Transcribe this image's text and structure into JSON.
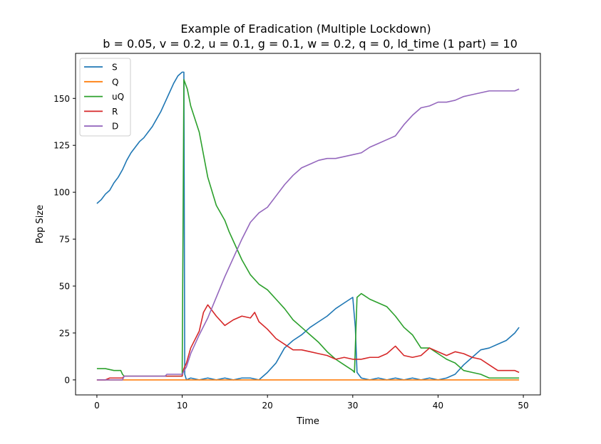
{
  "chart_data": {
    "type": "line",
    "title_line1": "Example of Eradication (Multiple Lockdown)",
    "title_line2": "b = 0.05, v = 0.2, u = 0.1, g = 0.1, w = 0.2, q = 0, ld_time (1 part) = 10",
    "xlabel": "Time",
    "ylabel": "Pop Size",
    "xlim": [
      -2.5,
      52
    ],
    "ylim": [
      -8,
      174
    ],
    "xticks": [
      0,
      10,
      20,
      30,
      40,
      50
    ],
    "yticks": [
      0,
      25,
      50,
      75,
      100,
      125,
      150
    ],
    "legend_position": "upper-left",
    "series": [
      {
        "name": "S",
        "color": "#1f77b4",
        "points": [
          [
            0,
            94
          ],
          [
            0.5,
            96
          ],
          [
            1,
            99
          ],
          [
            1.5,
            101
          ],
          [
            2,
            105
          ],
          [
            2.5,
            108
          ],
          [
            3,
            112
          ],
          [
            3.5,
            117
          ],
          [
            4,
            121
          ],
          [
            4.5,
            124
          ],
          [
            5,
            127
          ],
          [
            5.5,
            129
          ],
          [
            6,
            132
          ],
          [
            6.5,
            135
          ],
          [
            7,
            139
          ],
          [
            7.5,
            143
          ],
          [
            8,
            148
          ],
          [
            8.5,
            153
          ],
          [
            9,
            158
          ],
          [
            9.5,
            162
          ],
          [
            10,
            164
          ],
          [
            10.2,
            164
          ],
          [
            10.3,
            3
          ],
          [
            10.5,
            0
          ],
          [
            11,
            1
          ],
          [
            12,
            0
          ],
          [
            13,
            1
          ],
          [
            14,
            0
          ],
          [
            15,
            1
          ],
          [
            16,
            0
          ],
          [
            17,
            1
          ],
          [
            18,
            1
          ],
          [
            19,
            0
          ],
          [
            19.5,
            2
          ],
          [
            20,
            4
          ],
          [
            21,
            9
          ],
          [
            22,
            17
          ],
          [
            23,
            21
          ],
          [
            24,
            24
          ],
          [
            25,
            28
          ],
          [
            26,
            31
          ],
          [
            27,
            34
          ],
          [
            28,
            38
          ],
          [
            29,
            41
          ],
          [
            30,
            44
          ],
          [
            30.3,
            28
          ],
          [
            30.5,
            4
          ],
          [
            31,
            1
          ],
          [
            32,
            0
          ],
          [
            33,
            1
          ],
          [
            34,
            0
          ],
          [
            35,
            1
          ],
          [
            36,
            0
          ],
          [
            37,
            1
          ],
          [
            38,
            0
          ],
          [
            39,
            1
          ],
          [
            40,
            0
          ],
          [
            41,
            1
          ],
          [
            42,
            3
          ],
          [
            43,
            8
          ],
          [
            44,
            12
          ],
          [
            45,
            16
          ],
          [
            46,
            17
          ],
          [
            47,
            19
          ],
          [
            48,
            21
          ],
          [
            49,
            25
          ],
          [
            49.5,
            28
          ]
        ]
      },
      {
        "name": "Q",
        "color": "#ff7f0e",
        "points": [
          [
            0,
            0
          ],
          [
            49.5,
            0
          ]
        ]
      },
      {
        "name": "uQ",
        "color": "#2ca02c",
        "points": [
          [
            0,
            6
          ],
          [
            1,
            6
          ],
          [
            2,
            5
          ],
          [
            2.8,
            5
          ],
          [
            3,
            3
          ],
          [
            3.2,
            2
          ],
          [
            10,
            2
          ],
          [
            10.2,
            160
          ],
          [
            10.6,
            155
          ],
          [
            11,
            146
          ],
          [
            12,
            132
          ],
          [
            13,
            108
          ],
          [
            14,
            93
          ],
          [
            15,
            85
          ],
          [
            15.5,
            79
          ],
          [
            16,
            74
          ],
          [
            17,
            64
          ],
          [
            18,
            56
          ],
          [
            19,
            51
          ],
          [
            20,
            48
          ],
          [
            21,
            43
          ],
          [
            22,
            38
          ],
          [
            23,
            32
          ],
          [
            24,
            28
          ],
          [
            25,
            24
          ],
          [
            26,
            20
          ],
          [
            27,
            15
          ],
          [
            28,
            11
          ],
          [
            29,
            8
          ],
          [
            30,
            5
          ],
          [
            30.2,
            4
          ],
          [
            30.5,
            44
          ],
          [
            31,
            46
          ],
          [
            32,
            43
          ],
          [
            33,
            41
          ],
          [
            34,
            39
          ],
          [
            35,
            34
          ],
          [
            36,
            28
          ],
          [
            37,
            24
          ],
          [
            38,
            17
          ],
          [
            39,
            17
          ],
          [
            40,
            14
          ],
          [
            41,
            11
          ],
          [
            42,
            9
          ],
          [
            43,
            5
          ],
          [
            44,
            4
          ],
          [
            45,
            3
          ],
          [
            46,
            1
          ],
          [
            49.5,
            1
          ]
        ]
      },
      {
        "name": "R",
        "color": "#d62728",
        "points": [
          [
            0,
            0
          ],
          [
            1,
            0
          ],
          [
            1.5,
            1
          ],
          [
            3,
            1
          ],
          [
            3.2,
            2
          ],
          [
            10,
            2
          ],
          [
            10.2,
            6
          ],
          [
            10.5,
            9
          ],
          [
            11,
            17
          ],
          [
            12,
            26
          ],
          [
            12.5,
            36
          ],
          [
            13,
            40
          ],
          [
            14,
            34
          ],
          [
            15,
            29
          ],
          [
            16,
            32
          ],
          [
            17,
            34
          ],
          [
            18,
            33
          ],
          [
            18.5,
            36
          ],
          [
            19,
            31
          ],
          [
            20,
            27
          ],
          [
            21,
            22
          ],
          [
            22,
            19
          ],
          [
            23,
            16
          ],
          [
            24,
            16
          ],
          [
            25,
            15
          ],
          [
            26,
            14
          ],
          [
            27,
            13
          ],
          [
            28,
            11
          ],
          [
            29,
            12
          ],
          [
            30,
            11
          ],
          [
            31,
            11
          ],
          [
            32,
            12
          ],
          [
            33,
            12
          ],
          [
            34,
            14
          ],
          [
            35,
            18
          ],
          [
            36,
            13
          ],
          [
            37,
            12
          ],
          [
            38,
            13
          ],
          [
            39,
            17
          ],
          [
            40,
            15
          ],
          [
            41,
            13
          ],
          [
            42,
            15
          ],
          [
            43,
            14
          ],
          [
            44,
            12
          ],
          [
            45,
            11
          ],
          [
            46,
            8
          ],
          [
            47,
            5
          ],
          [
            49,
            5
          ],
          [
            49.5,
            4
          ]
        ]
      },
      {
        "name": "D",
        "color": "#9467bd",
        "points": [
          [
            0,
            0
          ],
          [
            3,
            0
          ],
          [
            3.2,
            2
          ],
          [
            8,
            2
          ],
          [
            8.2,
            3
          ],
          [
            10,
            3
          ],
          [
            10.5,
            7
          ],
          [
            11,
            14
          ],
          [
            12,
            24
          ],
          [
            13,
            33
          ],
          [
            14,
            44
          ],
          [
            15,
            55
          ],
          [
            16,
            65
          ],
          [
            17,
            75
          ],
          [
            18,
            84
          ],
          [
            19,
            89
          ],
          [
            20,
            92
          ],
          [
            21,
            98
          ],
          [
            22,
            104
          ],
          [
            23,
            109
          ],
          [
            24,
            113
          ],
          [
            25,
            115
          ],
          [
            26,
            117
          ],
          [
            27,
            118
          ],
          [
            28,
            118
          ],
          [
            29,
            119
          ],
          [
            30,
            120
          ],
          [
            31,
            121
          ],
          [
            32,
            124
          ],
          [
            33,
            126
          ],
          [
            34,
            128
          ],
          [
            35,
            130
          ],
          [
            36,
            136
          ],
          [
            37,
            141
          ],
          [
            38,
            145
          ],
          [
            39,
            146
          ],
          [
            40,
            148
          ],
          [
            41,
            148
          ],
          [
            42,
            149
          ],
          [
            43,
            151
          ],
          [
            44,
            152
          ],
          [
            45,
            153
          ],
          [
            46,
            154
          ],
          [
            47,
            154
          ],
          [
            48,
            154
          ],
          [
            49,
            154
          ],
          [
            49.5,
            155
          ]
        ]
      }
    ]
  }
}
